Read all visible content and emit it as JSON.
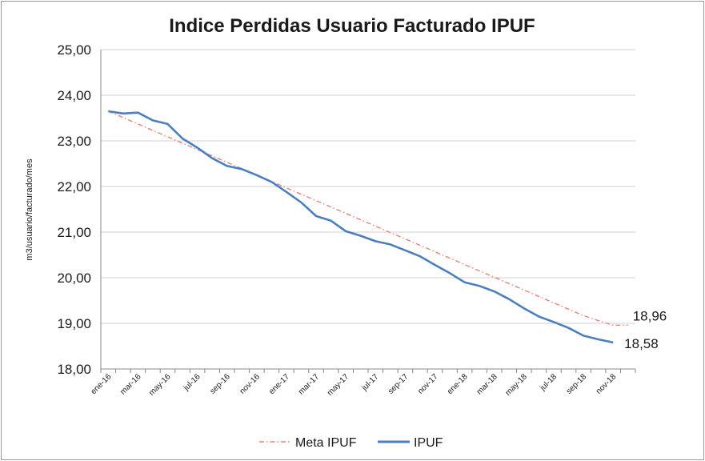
{
  "chart_data": {
    "type": "line",
    "title": "Indice Perdidas Usuario Facturado IPUF",
    "xlabel": "",
    "ylabel": "m3/usuario/facturado/mes",
    "ylim": [
      18,
      25
    ],
    "yticks": [
      "18,00",
      "19,00",
      "20,00",
      "21,00",
      "22,00",
      "23,00",
      "24,00",
      "25,00"
    ],
    "x": [
      "ene-16",
      "feb-16",
      "mar-16",
      "abr-16",
      "may-16",
      "jun-16",
      "jul-16",
      "ago-16",
      "sep-16",
      "oct-16",
      "nov-16",
      "dic-16",
      "ene-17",
      "feb-17",
      "mar-17",
      "abr-17",
      "may-17",
      "jun-17",
      "jul-17",
      "ago-17",
      "sep-17",
      "oct-17",
      "nov-17",
      "dic-17",
      "ene-18",
      "feb-18",
      "mar-18",
      "abr-18",
      "may-18",
      "jun-18",
      "jul-18",
      "ago-18",
      "sep-18",
      "oct-18",
      "nov-18",
      "dic-18"
    ],
    "xtick_labels": [
      "ene-16",
      "mar-16",
      "may-16",
      "jul-16",
      "sep-16",
      "nov-16",
      "ene-17",
      "mar-17",
      "may-17",
      "jul-17",
      "sep-17",
      "nov-17",
      "ene-18",
      "mar-18",
      "may-18",
      "jul-18",
      "sep-18",
      "nov-18"
    ],
    "grid": true,
    "legend_position": "bottom",
    "series": [
      {
        "name": "Meta IPUF",
        "color": "#e8837a",
        "style": "dash-dot",
        "values": [
          23.65,
          23.51,
          23.37,
          23.23,
          23.09,
          22.95,
          22.81,
          22.67,
          22.53,
          22.39,
          22.25,
          22.11,
          21.97,
          21.83,
          21.69,
          21.55,
          21.41,
          21.27,
          21.13,
          20.99,
          20.85,
          20.71,
          20.57,
          20.43,
          20.29,
          20.15,
          20.01,
          19.87,
          19.73,
          19.59,
          19.45,
          19.31,
          19.17,
          19.06,
          18.96,
          18.96
        ],
        "end_label": "18,96"
      },
      {
        "name": "IPUF",
        "color": "#4a7fc1",
        "style": "solid",
        "values": [
          23.65,
          23.6,
          23.62,
          23.45,
          23.37,
          23.05,
          22.85,
          22.62,
          22.45,
          22.38,
          22.25,
          22.1,
          21.88,
          21.65,
          21.35,
          21.25,
          21.02,
          20.92,
          20.8,
          20.73,
          20.6,
          20.47,
          20.28,
          20.1,
          19.9,
          19.82,
          19.7,
          19.53,
          19.33,
          19.15,
          19.03,
          18.9,
          18.73,
          18.65,
          18.58,
          null
        ],
        "end_label": "18,58"
      }
    ]
  }
}
